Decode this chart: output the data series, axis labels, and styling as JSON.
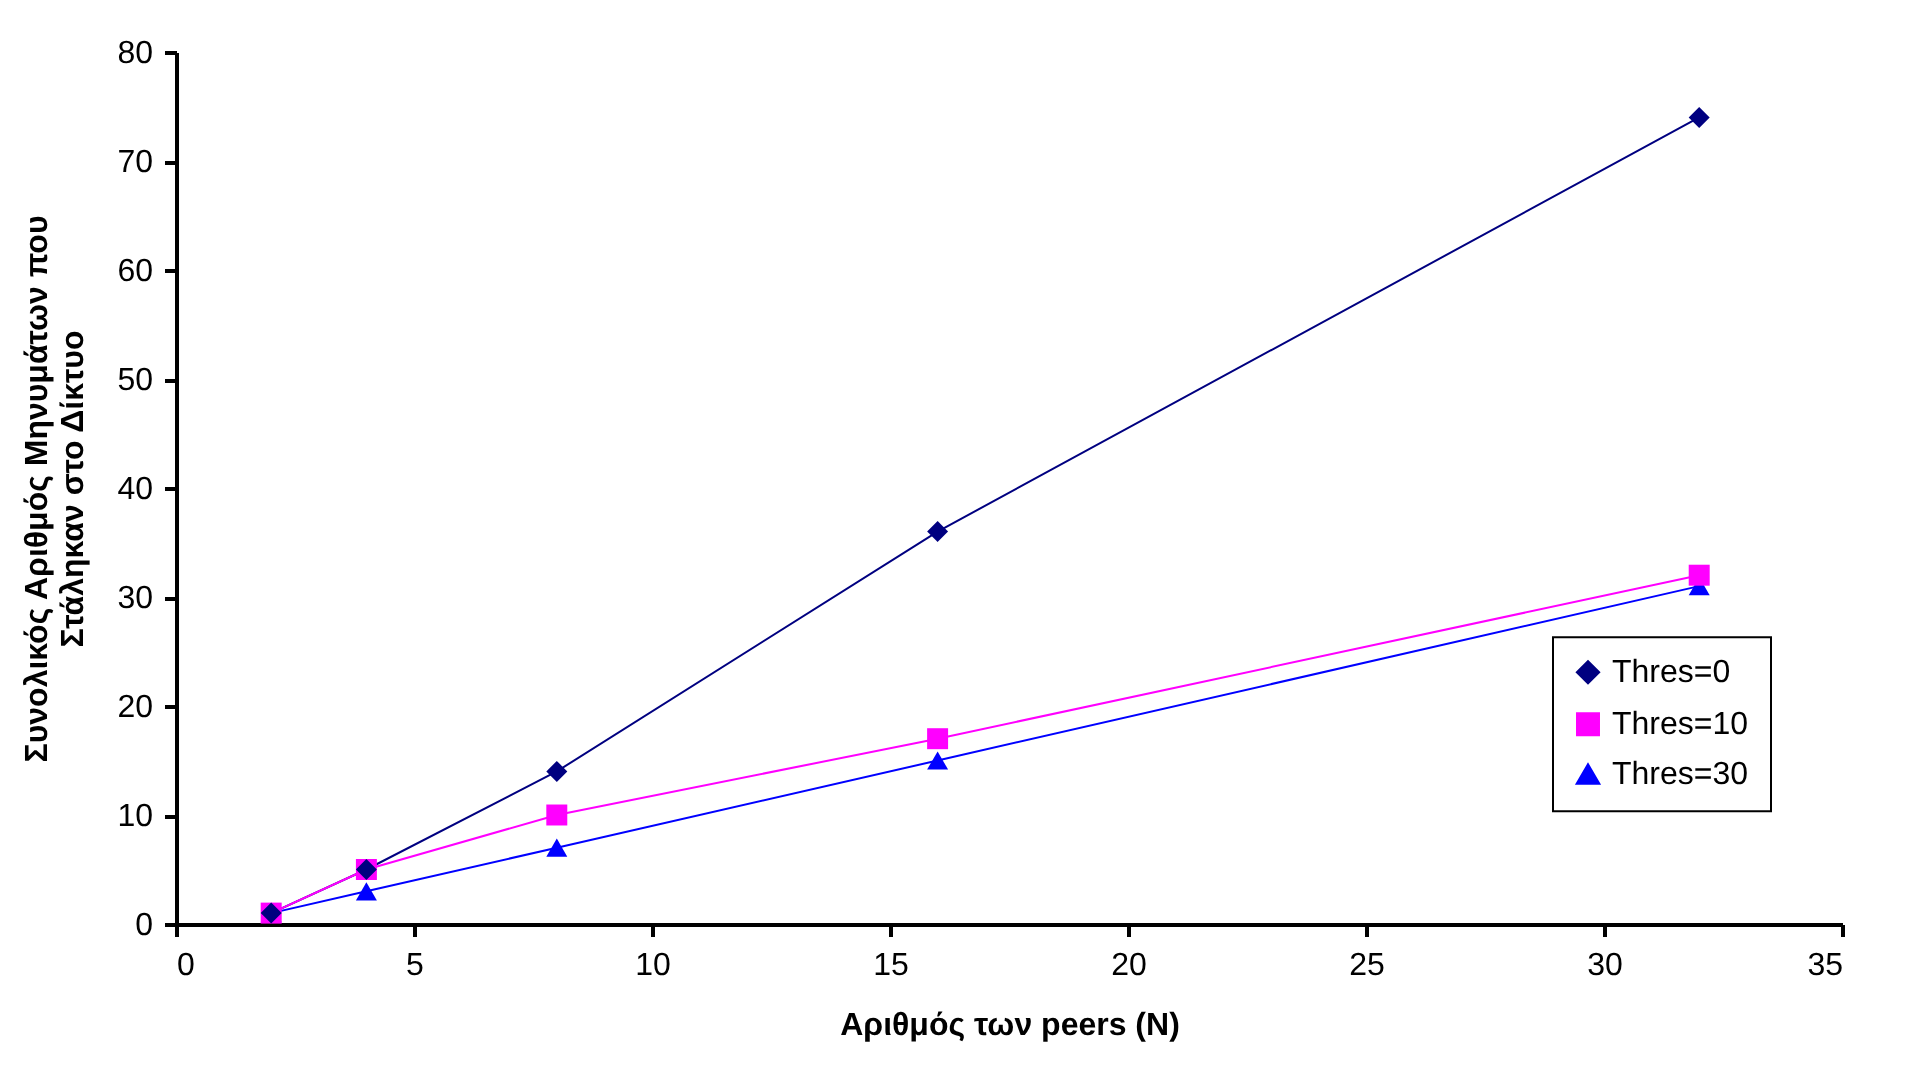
{
  "chart_data": {
    "type": "line",
    "xlabel": "Αριθμός των peers (N)",
    "ylabel": "Συνολικός Αριθμός Μηνυμάτων που\nΣτάληκαν στο Δίκτυο",
    "x": [
      2,
      4,
      8,
      16,
      32
    ],
    "series": [
      {
        "name": "Thres=0",
        "color": "#000080",
        "marker": "diamond",
        "values": [
          1,
          5,
          14,
          36,
          74
        ]
      },
      {
        "name": "Thres=10",
        "color": "#ff00ff",
        "marker": "square",
        "values": [
          1,
          5,
          10,
          17,
          32
        ]
      },
      {
        "name": "Thres=30",
        "color": "#0000ff",
        "marker": "triangle",
        "values": [
          1,
          3,
          7,
          15,
          31
        ]
      }
    ],
    "xlim": [
      0,
      35
    ],
    "xticks": [
      0,
      5,
      10,
      15,
      20,
      25,
      30,
      35
    ],
    "ylim": [
      0,
      80
    ],
    "yticks": [
      0,
      10,
      20,
      30,
      40,
      50,
      60,
      70,
      80
    ],
    "grid": false,
    "legend": "right",
    "line_style": "solid"
  }
}
